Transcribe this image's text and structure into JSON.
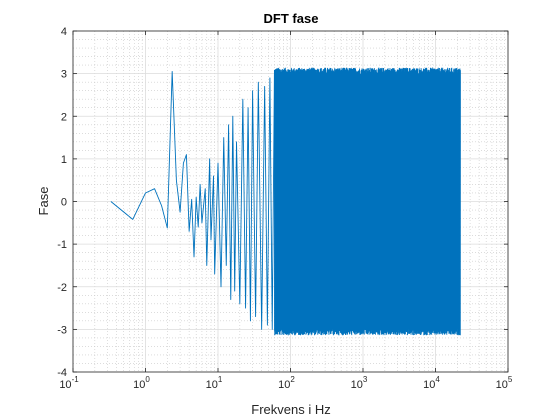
{
  "chart_data": {
    "type": "line",
    "title": "DFT fase",
    "xlabel": "Frekvens i Hz",
    "ylabel": "Fase",
    "xscale": "log",
    "xlim": [
      0.1,
      100000
    ],
    "ylim": [
      -4,
      4
    ],
    "xticks": [
      {
        "value": 0.1,
        "base": "10",
        "exp": "-1"
      },
      {
        "value": 1,
        "base": "10",
        "exp": "0"
      },
      {
        "value": 10,
        "base": "10",
        "exp": "1"
      },
      {
        "value": 100,
        "base": "10",
        "exp": "2"
      },
      {
        "value": 1000,
        "base": "10",
        "exp": "3"
      },
      {
        "value": 10000,
        "base": "10",
        "exp": "4"
      },
      {
        "value": 100000,
        "base": "10",
        "exp": "5"
      }
    ],
    "yticks": [
      -4,
      -3,
      -2,
      -1,
      0,
      1,
      2,
      3,
      4
    ],
    "grid": true,
    "minor_grid": true,
    "line_color": "#0072BD",
    "series": [
      {
        "x": [
          0.333,
          0.667,
          1.0,
          1.333,
          1.667,
          2.0,
          2.333,
          2.667,
          3.0,
          3.333,
          3.667,
          4.0,
          4.333,
          4.667,
          5.0,
          5.333,
          5.667,
          6.0,
          6.667,
          7.0,
          7.667,
          8.0,
          8.667,
          9.0,
          10.0,
          11.0,
          12.0,
          13.0,
          14.0,
          15.0,
          16.0,
          17.0,
          18.0,
          20.0,
          22.0,
          24.0,
          26.0,
          28.0,
          30.0,
          33.0,
          36.0,
          40.0,
          44.0,
          48.0,
          52.0,
          56.0,
          60.0
        ],
        "y": [
          0.0,
          -0.42,
          0.2,
          0.3,
          -0.1,
          -0.62,
          3.05,
          0.5,
          -0.25,
          0.9,
          1.1,
          -0.7,
          0.05,
          -1.3,
          0.1,
          -0.6,
          0.4,
          -0.5,
          0.3,
          -1.5,
          1.0,
          -0.9,
          0.6,
          -1.7,
          0.9,
          -2.0,
          1.5,
          -1.5,
          1.8,
          -2.3,
          2.0,
          -2.1,
          1.4,
          -2.4,
          2.4,
          -2.5,
          2.2,
          -2.8,
          2.6,
          -2.7,
          2.8,
          -3.0,
          2.7,
          -2.9,
          2.9,
          -3.0,
          3.0
        ]
      }
    ],
    "dense_region": {
      "x_range": [
        60,
        22050
      ],
      "y_range": [
        -3.14,
        3.14
      ]
    }
  }
}
